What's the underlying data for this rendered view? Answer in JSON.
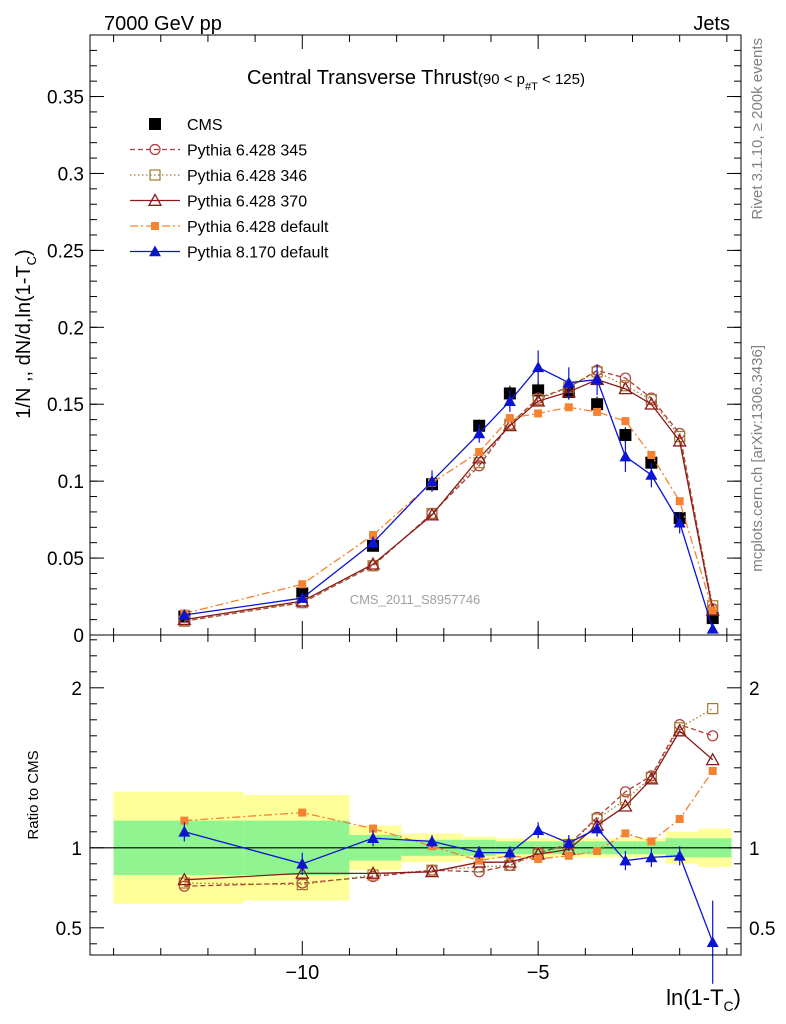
{
  "header": {
    "left": "7000 GeV pp",
    "right": "Jets"
  },
  "side_labels": {
    "rivet": "Rivet 3.1.10, ≥ 200k events",
    "mcplots": "mcplots.cern.ch [arXiv:1306.3436]"
  },
  "watermark": "CMS_2011_S8957746",
  "colors": {
    "cms": "#000000",
    "p345": "#b03a3a",
    "p346": "#a5782f",
    "p370": "#8b1a1a",
    "p6def": "#f58231",
    "p8def": "#0a14d2",
    "band_inner": "#90f590",
    "band_outer": "#ffff99"
  },
  "chart_data": [
    {
      "type": "scatter",
      "panel": "main",
      "title_main": "Central Transverse Thrust",
      "title_cut_pre": "(90 < p",
      "title_cut_sub": "#T",
      "title_cut_post": " < 125)",
      "ylabel_main": "1/N ,, dN/d,ln(1-T",
      "ylabel_sub": "C",
      "ylabel_close": ")",
      "xlim": [
        -14.5,
        -0.7
      ],
      "ylim": [
        0,
        0.39
      ],
      "yticks": [
        {
          "v": 0,
          "label": "0"
        },
        {
          "v": 0.05,
          "label": "0.05"
        },
        {
          "v": 0.1,
          "label": "0.1"
        },
        {
          "v": 0.15,
          "label": "0.15"
        },
        {
          "v": 0.2,
          "label": "0.2"
        },
        {
          "v": 0.25,
          "label": "0.25"
        },
        {
          "v": 0.3,
          "label": "0.3"
        },
        {
          "v": 0.35,
          "label": "0.35"
        }
      ],
      "legend_position": "top-left",
      "x": [
        -12.5,
        -10.0,
        -8.5,
        -7.25,
        -6.25,
        -5.6,
        -5.0,
        -4.35,
        -3.75,
        -3.15,
        -2.6,
        -2.0,
        -1.3
      ],
      "series": [
        {
          "key": "cms",
          "name": "CMS",
          "marker": "square-filled",
          "line": "none",
          "values": [
            0.012,
            0.027,
            0.058,
            0.098,
            0.136,
            0.157,
            0.159,
            0.158,
            0.15,
            0.13,
            0.112,
            0.076,
            0.011
          ],
          "err": [
            0.002,
            0.003,
            0.003,
            0.004,
            0.004,
            0.005,
            0.005,
            0.005,
            0.005,
            0.005,
            0.004,
            0.004,
            0.004
          ]
        },
        {
          "key": "p345",
          "name": "Pythia 6.428 345",
          "marker": "circle-open",
          "line": "dash",
          "values": [
            0.009,
            0.021,
            0.045,
            0.079,
            0.11,
            0.137,
            0.154,
            0.161,
            0.172,
            0.167,
            0.154,
            0.131,
            0.017
          ]
        },
        {
          "key": "p346",
          "name": "Pythia 6.428 346",
          "marker": "square-open",
          "line": "dot",
          "values": [
            0.009,
            0.021,
            0.045,
            0.079,
            0.112,
            0.137,
            0.153,
            0.161,
            0.171,
            0.162,
            0.153,
            0.129,
            0.019
          ]
        },
        {
          "key": "p370",
          "name": "Pythia 6.428 370",
          "marker": "triangle-open",
          "line": "solid",
          "values": [
            0.01,
            0.022,
            0.046,
            0.078,
            0.115,
            0.136,
            0.152,
            0.158,
            0.166,
            0.16,
            0.15,
            0.126,
            0.016
          ]
        },
        {
          "key": "p6def",
          "name": "Pythia 6.428 default",
          "marker": "square-small-filled",
          "line": "dashdot",
          "values": [
            0.014,
            0.033,
            0.065,
            0.099,
            0.119,
            0.141,
            0.144,
            0.148,
            0.145,
            0.139,
            0.117,
            0.087,
            0.016
          ]
        },
        {
          "key": "p8def",
          "name": "Pythia 8.170 default",
          "marker": "triangle-filled",
          "line": "solid",
          "values": [
            0.013,
            0.024,
            0.06,
            0.1,
            0.131,
            0.152,
            0.174,
            0.164,
            0.166,
            0.116,
            0.104,
            0.073,
            0.004
          ],
          "err": [
            0.001,
            0.002,
            0.004,
            0.007,
            0.006,
            0.007,
            0.011,
            0.01,
            0.01,
            0.01,
            0.008,
            0.007,
            0.003
          ]
        }
      ]
    },
    {
      "type": "scatter",
      "panel": "ratio",
      "ylabel": "Ratio to CMS",
      "xlabel_main": "ln(1-T",
      "xlabel_sub": "C",
      "xlabel_close": ")",
      "xlim": [
        -14.5,
        -0.7
      ],
      "ylim": [
        0.33,
        2.33
      ],
      "xticks": [
        {
          "v": -10,
          "label": "−10"
        },
        {
          "v": -5,
          "label": "−5"
        }
      ],
      "yticks": [
        {
          "v": 0.5,
          "label": "0.5"
        },
        {
          "v": 1,
          "label": "1"
        },
        {
          "v": 2,
          "label": "2"
        }
      ],
      "bins": [
        [
          -14.0,
          -11.25
        ],
        [
          -11.25,
          -9.0
        ],
        [
          -9.0,
          -7.9
        ],
        [
          -7.9,
          -6.6
        ],
        [
          -6.6,
          -5.9
        ],
        [
          -5.9,
          -5.3
        ],
        [
          -5.3,
          -4.7
        ],
        [
          -4.7,
          -4.1
        ],
        [
          -4.1,
          -3.4
        ],
        [
          -3.4,
          -2.9
        ],
        [
          -2.9,
          -2.3
        ],
        [
          -2.3,
          -1.6
        ],
        [
          -1.6,
          -0.9
        ]
      ],
      "band_inner": [
        0.17,
        0.17,
        0.08,
        0.05,
        0.05,
        0.04,
        0.04,
        0.04,
        0.04,
        0.04,
        0.04,
        0.06,
        0.06
      ],
      "band_outer": [
        0.35,
        0.33,
        0.14,
        0.09,
        0.07,
        0.06,
        0.06,
        0.06,
        0.06,
        0.06,
        0.06,
        0.1,
        0.12
      ],
      "x": [
        -12.5,
        -10.0,
        -8.5,
        -7.25,
        -6.25,
        -5.6,
        -5.0,
        -4.35,
        -3.75,
        -3.15,
        -2.6,
        -2.0,
        -1.3
      ],
      "series": [
        {
          "key": "p345",
          "marker": "circle-open",
          "line": "dash",
          "values": [
            0.76,
            0.78,
            0.82,
            0.86,
            0.85,
            0.89,
            0.97,
            1.02,
            1.19,
            1.35,
            1.45,
            1.77,
            1.7
          ]
        },
        {
          "key": "p346",
          "marker": "square-open",
          "line": "dot",
          "values": [
            0.78,
            0.77,
            0.83,
            0.86,
            0.88,
            0.89,
            0.96,
            1.02,
            1.18,
            1.3,
            1.44,
            1.75,
            1.87
          ]
        },
        {
          "key": "p370",
          "marker": "triangle-open",
          "line": "solid",
          "values": [
            0.8,
            0.84,
            0.84,
            0.85,
            0.91,
            0.91,
            0.96,
            0.99,
            1.14,
            1.26,
            1.43,
            1.73,
            1.55
          ]
        },
        {
          "key": "p6def",
          "marker": "square-small-filled",
          "line": "dashdot",
          "values": [
            1.17,
            1.22,
            1.12,
            1.01,
            0.92,
            0.95,
            0.93,
            0.95,
            0.98,
            1.09,
            1.04,
            1.18,
            1.48
          ]
        },
        {
          "key": "p8def",
          "marker": "triangle-filled",
          "line": "solid",
          "values": [
            1.1,
            0.9,
            1.06,
            1.04,
            0.97,
            0.97,
            1.11,
            1.03,
            1.12,
            0.92,
            0.94,
            0.95,
            0.41
          ],
          "err": [
            0.06,
            0.07,
            0.05,
            0.04,
            0.04,
            0.04,
            0.05,
            0.05,
            0.05,
            0.06,
            0.06,
            0.06,
            0.26
          ]
        }
      ]
    }
  ]
}
